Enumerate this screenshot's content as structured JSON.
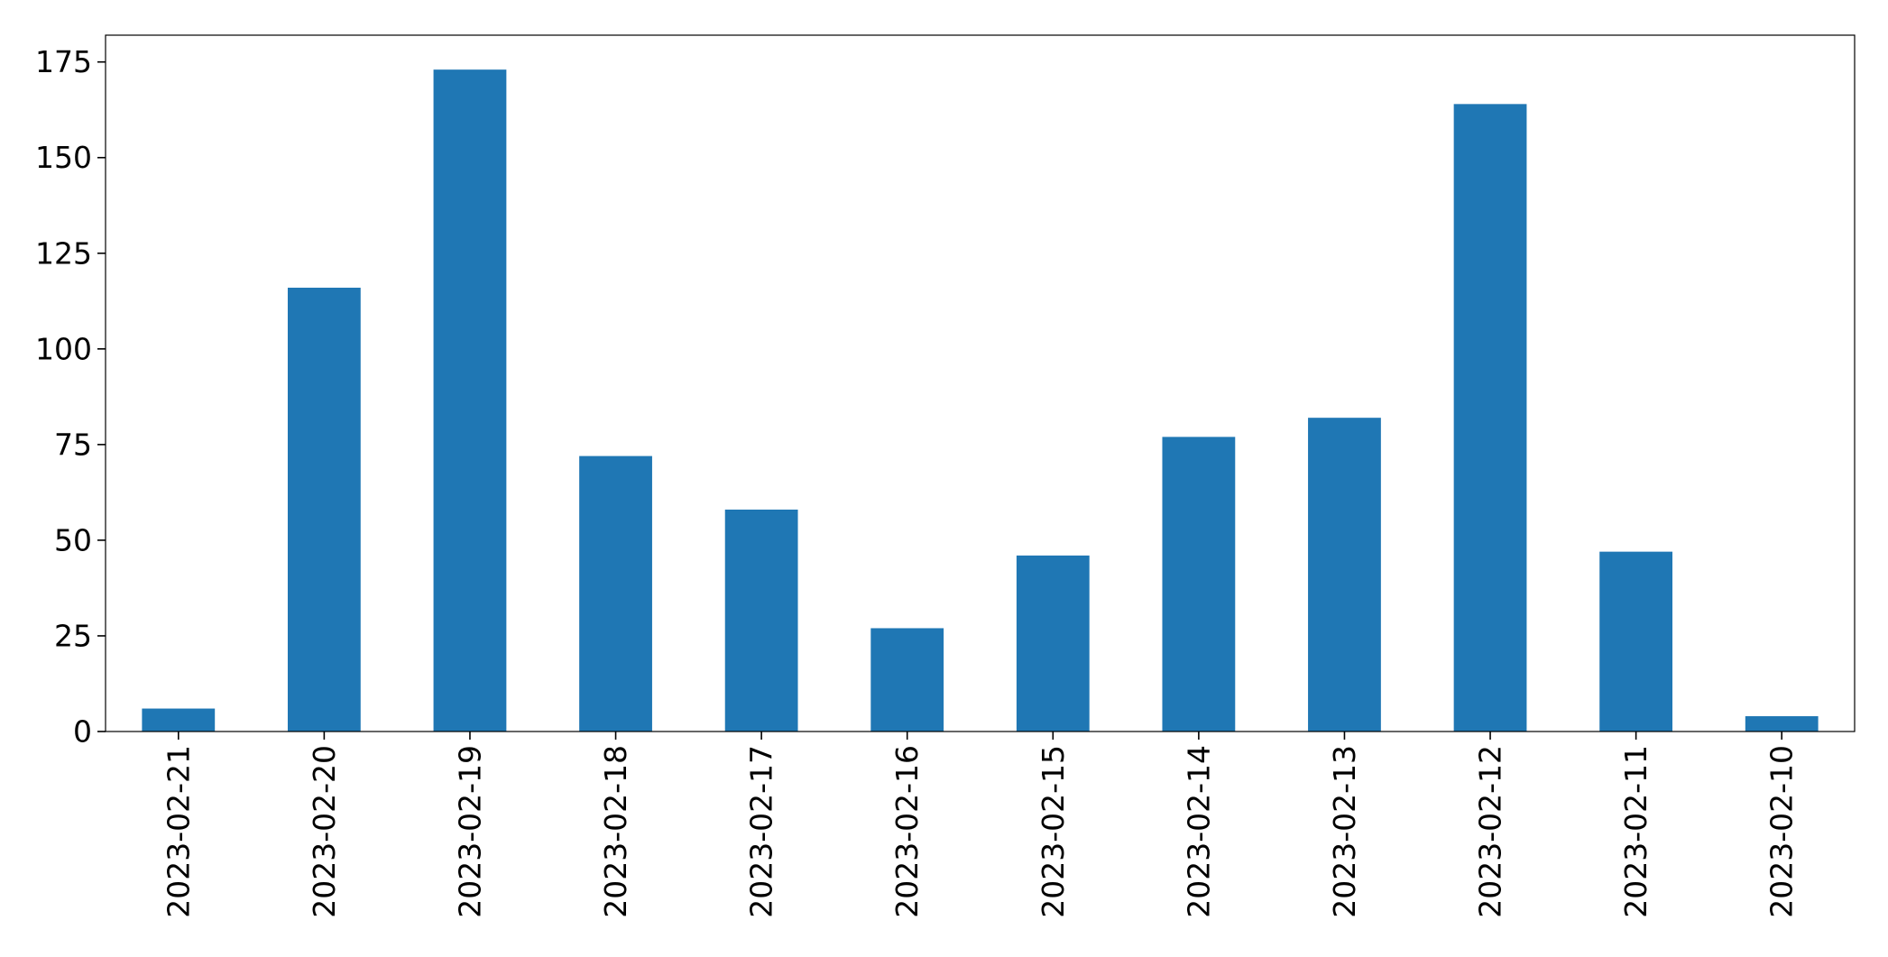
{
  "chart_data": {
    "type": "bar",
    "title": "",
    "xlabel": "",
    "ylabel": "",
    "categories": [
      "2023-02-21",
      "2023-02-20",
      "2023-02-19",
      "2023-02-18",
      "2023-02-17",
      "2023-02-16",
      "2023-02-15",
      "2023-02-14",
      "2023-02-13",
      "2023-02-12",
      "2023-02-11",
      "2023-02-10"
    ],
    "values": [
      6,
      116,
      173,
      72,
      58,
      27,
      46,
      77,
      82,
      164,
      47,
      4
    ],
    "ylim": [
      0,
      182
    ],
    "yticks": [
      0,
      25,
      50,
      75,
      100,
      125,
      150,
      175
    ],
    "ytick_labels": [
      "0",
      "25",
      "50",
      "75",
      "100",
      "125",
      "150",
      "175"
    ],
    "grid": false,
    "legend": "none",
    "bar_color": "#1f77b4"
  }
}
